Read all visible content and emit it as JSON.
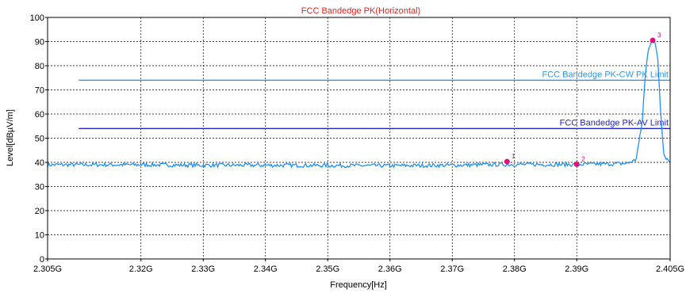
{
  "chart_data": {
    "type": "line",
    "title": "FCC Bandedge PK(Horizontal)",
    "xlabel": "Frequency[Hz]",
    "ylabel": "Level[dBµV/m]",
    "xlim": [
      2.305,
      2.405
    ],
    "ylim": [
      0,
      100
    ],
    "x_unit": "GHz",
    "grid": true,
    "x_ticks": [
      {
        "value": 2.305,
        "label": "2.305G"
      },
      {
        "value": 2.32,
        "label": "2.32G"
      },
      {
        "value": 2.33,
        "label": "2.33G"
      },
      {
        "value": 2.34,
        "label": "2.34G"
      },
      {
        "value": 2.35,
        "label": "2.35G"
      },
      {
        "value": 2.36,
        "label": "2.36G"
      },
      {
        "value": 2.37,
        "label": "2.37G"
      },
      {
        "value": 2.38,
        "label": "2.38G"
      },
      {
        "value": 2.39,
        "label": "2.39G"
      },
      {
        "value": 2.405,
        "label": "2.405G"
      }
    ],
    "y_ticks": [
      0,
      10,
      20,
      30,
      40,
      50,
      60,
      70,
      80,
      90,
      100
    ],
    "limits": [
      {
        "name": "FCC Bandedge PK-CW PK Limit",
        "value": 74,
        "x_start": 2.31,
        "x_end": 2.405,
        "color": "#3399ee"
      },
      {
        "name": "FCC Bandedge PK-AV Limit",
        "value": 54,
        "x_start": 2.31,
        "x_end": 2.405,
        "color": "#2222cc"
      }
    ],
    "series": [
      {
        "color": "#1e90ff",
        "x": [
          2.305,
          2.31,
          2.32,
          2.33,
          2.34,
          2.35,
          2.36,
          2.37,
          2.378,
          2.39,
          2.398,
          2.3995,
          2.4005,
          2.401,
          2.4015,
          2.402,
          2.4025,
          2.403,
          2.4035,
          2.404,
          2.405
        ],
        "y": [
          39,
          39,
          39,
          38.8,
          38.8,
          38.7,
          38.6,
          38.8,
          39.1,
          39.1,
          39.5,
          41,
          56,
          76,
          87,
          90.5,
          90,
          84,
          60,
          43,
          40
        ]
      }
    ],
    "markers": [
      {
        "label": "1",
        "x": 2.3788,
        "y": 40.3
      },
      {
        "label": "2",
        "x": 2.39,
        "y": 39.2
      },
      {
        "label": "3",
        "x": 2.4022,
        "y": 90.5
      }
    ],
    "colors": {
      "title": "#e8221c",
      "marker": "#e0107a",
      "grid": "#000000"
    }
  }
}
